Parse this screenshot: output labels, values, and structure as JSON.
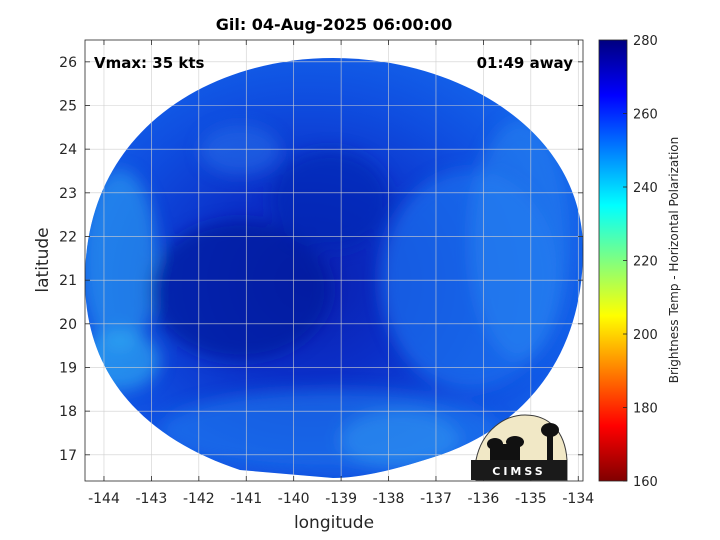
{
  "chart_data": {
    "type": "heatmap",
    "title": "Gil: 04-Aug-2025 06:00:00",
    "xlabel": "longitude",
    "ylabel": "latitude",
    "x_ticks": [
      "-144",
      "-143",
      "-142",
      "-141",
      "-140",
      "-139",
      "-138",
      "-137",
      "-136",
      "-135",
      "-134"
    ],
    "y_ticks": [
      "17",
      "18",
      "19",
      "20",
      "21",
      "22",
      "23",
      "24",
      "25",
      "26"
    ],
    "xlim": [
      -144.4,
      -133.9
    ],
    "ylim": [
      16.4,
      26.5
    ],
    "grid": true,
    "annotations": {
      "left": "Vmax: 35 kts",
      "right": "01:49 away"
    },
    "colorbar": {
      "label": "Brightness Temp - Horizontal Polarization",
      "ticks": [
        "160",
        "180",
        "200",
        "220",
        "240",
        "260",
        "280"
      ],
      "range": [
        160,
        280
      ],
      "colormap": "jet",
      "position": "right"
    },
    "swath": {
      "center_lon": -139.0,
      "center_lat": 21.3,
      "approx_value": 262,
      "range": [
        245,
        272
      ]
    },
    "logo_text": "CIMSS"
  }
}
